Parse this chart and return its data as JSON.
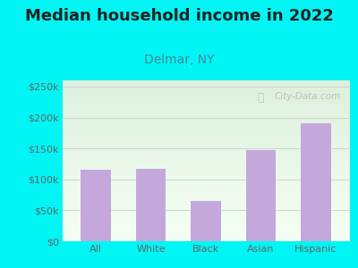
{
  "title": "Median household income in 2022",
  "subtitle": "Delmar, NY",
  "categories": [
    "All",
    "White",
    "Black",
    "Asian",
    "Hispanic"
  ],
  "values": [
    115000,
    117000,
    65000,
    148000,
    190000
  ],
  "bar_color": "#c4a8dc",
  "background_color": "#00f5f5",
  "plot_bg_top_color": "#ddf0dd",
  "plot_bg_bottom_color": "#f5fff5",
  "title_fontsize": 13,
  "subtitle_fontsize": 10,
  "ylim": [
    0,
    260000
  ],
  "yticks": [
    0,
    50000,
    100000,
    150000,
    200000,
    250000
  ],
  "ytick_labels": [
    "$0",
    "$50k",
    "$100k",
    "$150k",
    "$200k",
    "$250k"
  ],
  "watermark": "City-Data.com",
  "subtitle_color": "#448899",
  "title_color": "#222222",
  "tick_color": "#666666",
  "grid_color": "#cccccc"
}
